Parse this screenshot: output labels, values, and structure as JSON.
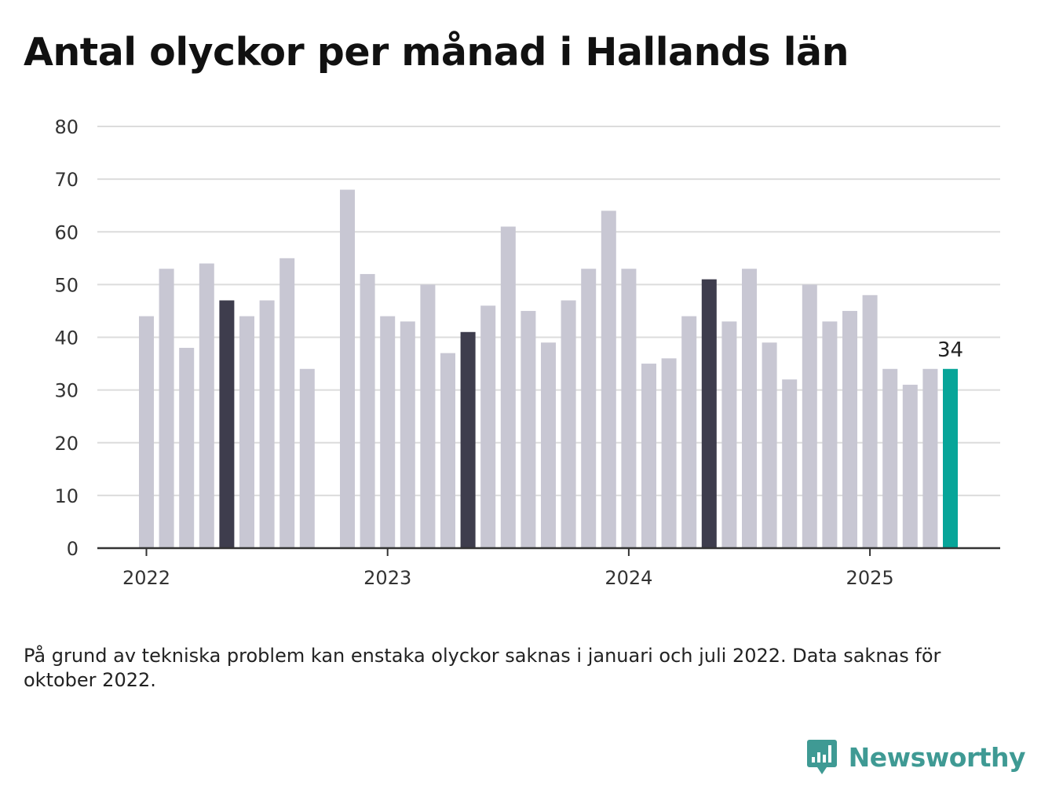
{
  "title": "Antal olyckor per månad i Hallands län",
  "footnote": "På grund av tekniska problem kan enstaka olyckor saknas i januari och juli 2022. Data saknas för oktober 2022.",
  "brand": {
    "name": "Newsworthy",
    "icon": "newsworthy-logo-icon"
  },
  "colors": {
    "regular": "#c8c7d3",
    "highlight_may": "#3e3d4d",
    "latest": "#07a599",
    "grid": "#dcdcdc",
    "axis": "#333333"
  },
  "chart_data": {
    "type": "bar",
    "title": "Antal olyckor per månad i Hallands län",
    "xlabel": "",
    "ylabel": "",
    "ylim": [
      0,
      80
    ],
    "yticks": [
      0,
      10,
      20,
      30,
      40,
      50,
      60,
      70,
      80
    ],
    "xtick_labels": [
      {
        "label": "2022",
        "month": "2022-01"
      },
      {
        "label": "2023",
        "month": "2023-01"
      },
      {
        "label": "2024",
        "month": "2024-01"
      },
      {
        "label": "2025",
        "month": "2025-01"
      }
    ],
    "grid": true,
    "categories": [
      "2022-01",
      "2022-02",
      "2022-03",
      "2022-04",
      "2022-05",
      "2022-06",
      "2022-07",
      "2022-08",
      "2022-09",
      "2022-10",
      "2022-11",
      "2022-12",
      "2023-01",
      "2023-02",
      "2023-03",
      "2023-04",
      "2023-05",
      "2023-06",
      "2023-07",
      "2023-08",
      "2023-09",
      "2023-10",
      "2023-11",
      "2023-12",
      "2024-01",
      "2024-02",
      "2024-03",
      "2024-04",
      "2024-05",
      "2024-06",
      "2024-07",
      "2024-08",
      "2024-09",
      "2024-10",
      "2024-11",
      "2024-12",
      "2025-01",
      "2025-02",
      "2025-03",
      "2025-04",
      "2025-05"
    ],
    "values": [
      44,
      53,
      38,
      54,
      47,
      44,
      47,
      55,
      34,
      null,
      68,
      52,
      44,
      43,
      50,
      37,
      41,
      46,
      61,
      45,
      39,
      47,
      53,
      64,
      53,
      35,
      36,
      44,
      51,
      43,
      53,
      39,
      32,
      50,
      43,
      45,
      48,
      34,
      31,
      34,
      34
    ],
    "highlighted_months": [
      "2022-05",
      "2023-05",
      "2024-05"
    ],
    "latest": {
      "month": "2025-05",
      "label": "34"
    }
  }
}
